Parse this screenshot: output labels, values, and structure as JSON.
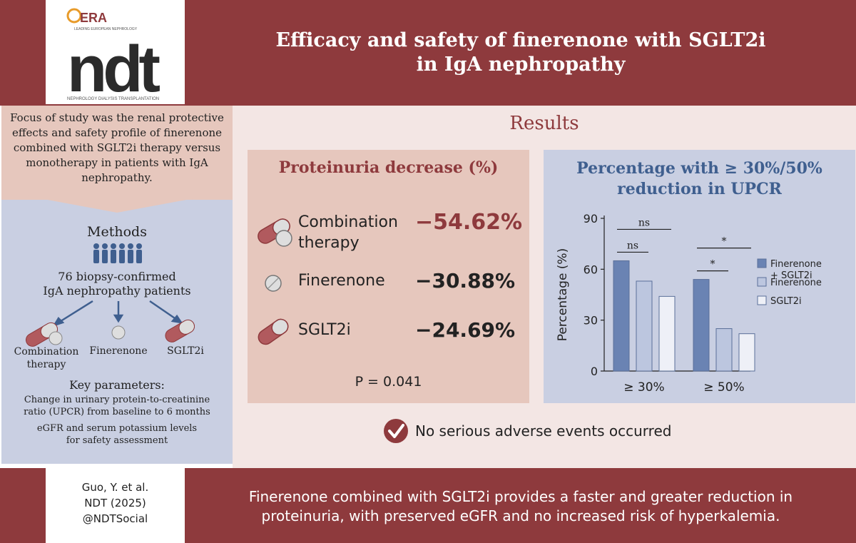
{
  "header": {
    "logo_top": "ERA",
    "logo_tagline": "LEADING EUROPEAN NEPHROLOGY",
    "logo_main": "ndt",
    "logo_sub": "NEPHROLOGY DIALYSIS TRANSPLANTATION",
    "title_line1": "Efficacy and safety of finerenone with SGLT2i",
    "title_line2": "in IgA nephropathy"
  },
  "left": {
    "focus": "Focus of study was the renal protective effects and safety profile of finerenone combined with SGLT2i therapy versus monotherapy in patients with IgA nephropathy.",
    "methods_title": "Methods",
    "patients_line1": "76 biopsy-confirmed",
    "patients_line2": "IgA nephropathy patients",
    "groups": [
      "Combination therapy",
      "Finerenone",
      "SGLT2i"
    ],
    "key_title": "Key parameters:",
    "key_line1": "Change in urinary protein-to-creatinine",
    "key_line2": "ratio (UPCR) from baseline to 6 months",
    "key_line3": "eGFR and serum potassium levels",
    "key_line4": "for safety assessment"
  },
  "results": {
    "title": "Results",
    "proteinuria": {
      "title": "Proteinuria decrease (%)",
      "rows": [
        {
          "label_line1": "Combination",
          "label_line2": "therapy",
          "value": "−54.62%"
        },
        {
          "label_line1": "Finerenone",
          "label_line2": "",
          "value": "−30.88%"
        },
        {
          "label_line1": "SGLT2i",
          "label_line2": "",
          "value": "−24.69%"
        }
      ],
      "p_value": "P = 0.041"
    },
    "safety": "No serious adverse events occurred"
  },
  "chart_data": {
    "type": "bar",
    "title": "Percentage with ≥ 30%/50% reduction in UPCR",
    "title_line1": "Percentage with ≥ 30%/50%",
    "title_line2": "reduction in UPCR",
    "ylabel": "Percentage (%)",
    "xlabel": "",
    "ylim": [
      0,
      90
    ],
    "yticks": [
      0,
      30,
      60,
      90
    ],
    "categories": [
      "≥ 30%",
      "≥ 50%"
    ],
    "series": [
      {
        "name": "Finerenone + SGLT2i",
        "legend_line1": "Finerenone",
        "legend_line2": "+ SGLT2i",
        "color": "#6a83b3",
        "values": [
          65,
          54
        ]
      },
      {
        "name": "Finerenone",
        "legend_line1": "Finerenone",
        "legend_line2": "",
        "color": "#bcc6df",
        "values": [
          53,
          25
        ]
      },
      {
        "name": "SGLT2i",
        "legend_line1": "SGLT2i",
        "legend_line2": "",
        "color": "#eef0f7",
        "values": [
          44,
          22
        ]
      }
    ],
    "significance": [
      {
        "category": 0,
        "pair": "1-2",
        "label": "ns"
      },
      {
        "category": 0,
        "pair": "1-3",
        "label": "ns"
      },
      {
        "category": 1,
        "pair": "1-2",
        "label": "*"
      },
      {
        "category": 1,
        "pair": "1-3",
        "label": "*"
      }
    ]
  },
  "footer": {
    "ref_line1": "Guo, Y. et al.",
    "ref_line2": "NDT (2025)",
    "ref_line3": "@NDTSocial",
    "conclusion_line1": "Finerenone combined with SGLT2i provides a faster and greater reduction in",
    "conclusion_line2": "proteinuria, with preserved eGFR and no increased risk of hyperkalemia."
  },
  "colors": {
    "maroon": "#8e3a3d",
    "pink_panel": "#e6c7bd",
    "blue_panel": "#c9cfe2",
    "results_bg": "#f3e6e4",
    "blue_title": "#3f5f8f"
  }
}
